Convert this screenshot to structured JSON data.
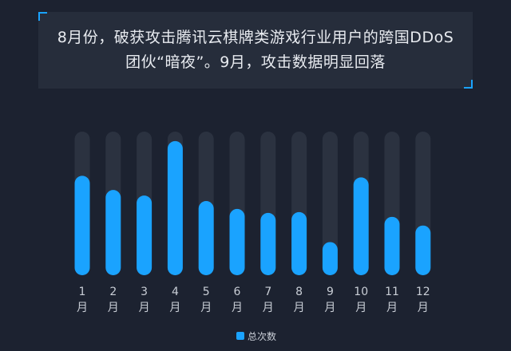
{
  "callout": {
    "text": "8月份，破获攻击腾讯云棋牌类游戏行业用户的跨国DDoS团伙“暗夜”。9月，攻击数据明显回落"
  },
  "colors": {
    "accent": "#1aa3ff",
    "track": "#2b3240",
    "background": "#1c2230"
  },
  "chart_data": {
    "type": "bar",
    "categories": [
      "1月",
      "2月",
      "3月",
      "4月",
      "5月",
      "6月",
      "7月",
      "8月",
      "9月",
      "10月",
      "11月",
      "12月"
    ],
    "category_digits": [
      "1",
      "2",
      "3",
      "4",
      "5",
      "6",
      "7",
      "8",
      "9",
      "10",
      "11",
      "12"
    ],
    "category_unit": "月",
    "series": [
      {
        "name": "总次数",
        "values": [
          126,
          108,
          101,
          170,
          94,
          84,
          79,
          80,
          42,
          124,
          74,
          63
        ]
      }
    ],
    "ylim": [
      0,
      182
    ],
    "grid": false,
    "axis_ticks_shown": false,
    "legend_position": "bottom-center"
  }
}
